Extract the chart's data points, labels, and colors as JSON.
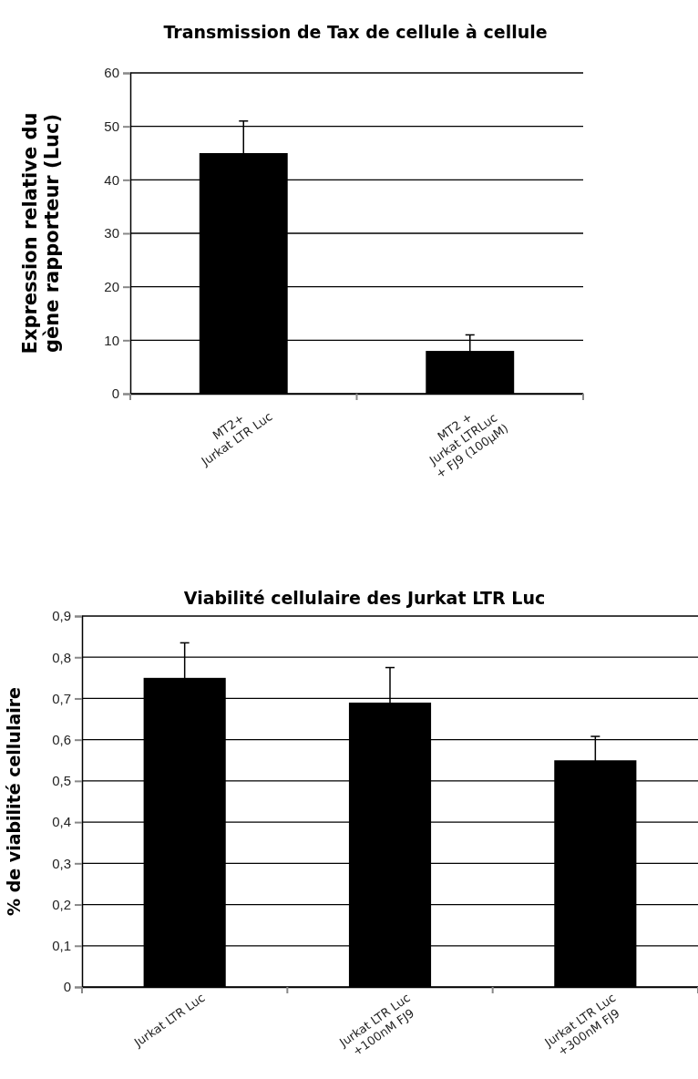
{
  "chart_data": [
    {
      "type": "bar",
      "title": "Transmission de Tax de cellule à cellule",
      "ylabel": "Expression relative du\ngène rapporteur (Luc)",
      "categories": [
        "MT2+\nJurkat LTR Luc",
        "MT2 +\nJurkat LTRLuc\n+ FJ9 (100µM)"
      ],
      "values": [
        45,
        8
      ],
      "errors": [
        6,
        3
      ],
      "color": "#000000",
      "ylim": [
        0,
        60
      ],
      "yticks": [
        0,
        10,
        20,
        30,
        40,
        50,
        60
      ],
      "grid": "y"
    },
    {
      "type": "bar",
      "title": "Viabilité cellulaire des Jurkat LTR Luc",
      "ylabel": "% de viabilité cellulaire",
      "categories": [
        "Jurkat LTR Luc",
        "Jurkat LTR Luc\n+100nM FJ9",
        "Jurkat LTR Luc\n+300nM FJ9"
      ],
      "values": [
        0.75,
        0.69,
        0.55
      ],
      "errors": [
        0.085,
        0.085,
        0.058
      ],
      "color": "#000000",
      "ylim": [
        0,
        0.9
      ],
      "yticks": [
        0,
        {
          "value": 0.1,
          "label": "0,1"
        },
        {
          "value": 0.2,
          "label": "0,2"
        },
        {
          "value": 0.3,
          "label": "0,3"
        },
        {
          "value": 0.4,
          "label": "0,4"
        },
        {
          "value": 0.5,
          "label": "0,5"
        },
        {
          "value": 0.6,
          "label": "0,6"
        },
        {
          "value": 0.7,
          "label": "0,7"
        },
        {
          "value": 0.8,
          "label": "0,8"
        },
        {
          "value": 0.9,
          "label": "0,9"
        }
      ],
      "grid": "y"
    }
  ]
}
